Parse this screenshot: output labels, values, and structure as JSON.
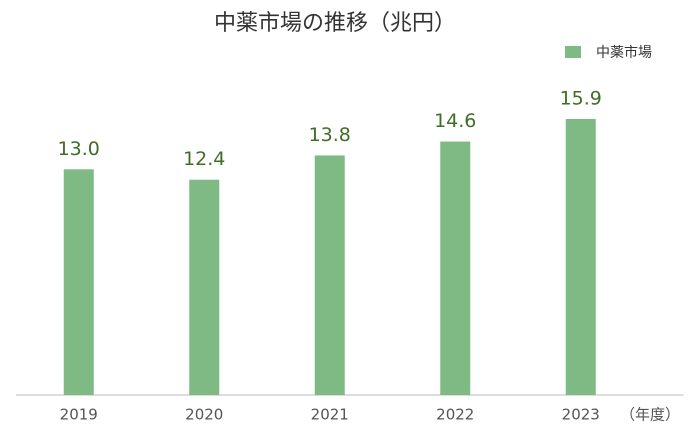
{
  "chart_data": {
    "type": "bar",
    "title": "中薬市場の推移（兆円）",
    "x_label": "（年度）",
    "categories": [
      "2019",
      "2020",
      "2021",
      "2022",
      "2023"
    ],
    "series": [
      {
        "name": "中薬市場",
        "color": "#7fba84",
        "values": [
          13.0,
          12.4,
          13.8,
          14.6,
          15.9
        ],
        "value_labels": [
          "13.0",
          "12.4",
          "13.8",
          "14.6",
          "15.9"
        ]
      }
    ],
    "ylim": [
      0,
      18
    ],
    "legend": "top-right"
  }
}
